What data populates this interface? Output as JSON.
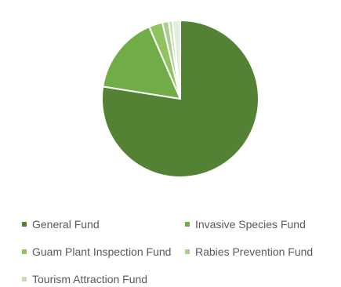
{
  "chart_data": {
    "type": "pie",
    "title": "",
    "legend_position": "bottom",
    "series": [
      {
        "name": "General Fund",
        "value": 77.5,
        "color": "#548235"
      },
      {
        "name": "Invasive Species Fund",
        "value": 16.0,
        "color": "#70AD47"
      },
      {
        "name": "Guam Plant Inspection Fund",
        "value": 2.8,
        "color": "#8FC35F"
      },
      {
        "name": "Rabies Prevention Fund",
        "value": 1.3,
        "color": "#A9D08E"
      },
      {
        "name": "Tourism Attraction Fund",
        "value": 0.8,
        "color": "#C5E0B4"
      },
      {
        "name": "",
        "value": 1.6,
        "color": "#E2EFDA"
      }
    ]
  }
}
